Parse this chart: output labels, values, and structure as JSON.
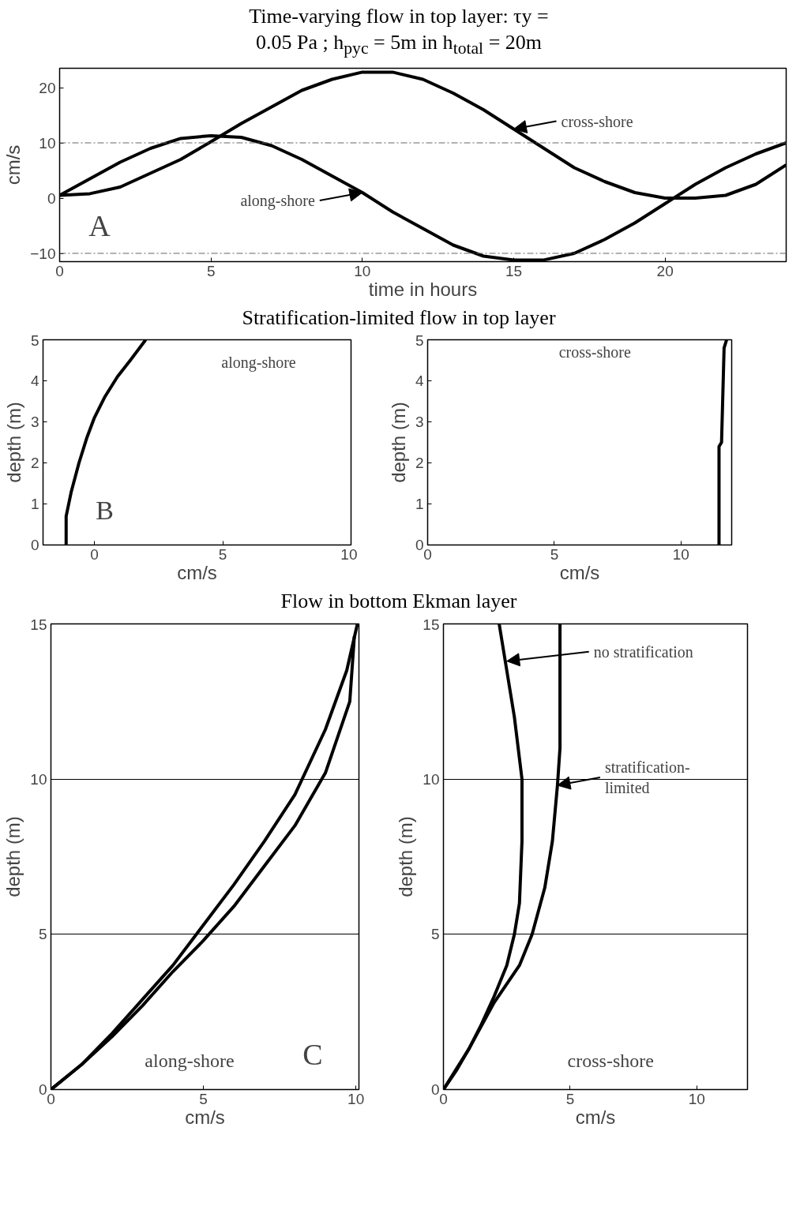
{
  "chart_data": [
    {
      "type": "line",
      "title": "Time-varying flow in top layer:  τy =\n0.05 Pa ;  h$_{pyc}$ = 5m in h$_{total}$ = 20m",
      "xlabel": "time in hours",
      "ylabel": "cm/s",
      "xlim": [
        0,
        24
      ],
      "ylim": [
        -11.5,
        23.5
      ],
      "xticks": [
        0,
        5,
        10,
        15,
        20
      ],
      "yticks": [
        -10,
        0,
        10,
        20
      ],
      "ref_lines": [
        {
          "axis": "y",
          "value": 10,
          "color": "#666666",
          "line_style": "dashed"
        },
        {
          "axis": "y",
          "value": -10,
          "color": "#666666",
          "line_style": "dashed"
        }
      ],
      "line_style": "solid",
      "series": [
        {
          "color": "#000000",
          "x": [
            0,
            1,
            2,
            3,
            4,
            5,
            6,
            7,
            8,
            9,
            10,
            11,
            12,
            13,
            14,
            15,
            16,
            17,
            18,
            19,
            20,
            21,
            22,
            23,
            24
          ],
          "values": [
            0.5,
            3.5,
            6.5,
            9,
            10.8,
            11.3,
            11,
            9.5,
            7,
            4,
            1,
            -2.5,
            -5.5,
            -8.5,
            -10.5,
            -11.2,
            -11.2,
            -10,
            -7.5,
            -4.5,
            -1,
            2.5,
            5.5,
            8,
            10
          ]
        },
        {
          "color": "#000000",
          "x": [
            0,
            1,
            2,
            3,
            4,
            5,
            6,
            7,
            8,
            9,
            10,
            11,
            12,
            13,
            14,
            15,
            16,
            17,
            18,
            19,
            20,
            21,
            22,
            23,
            24
          ],
          "values": [
            0.5,
            0.8,
            2,
            4.5,
            7,
            10.2,
            13.5,
            16.5,
            19.5,
            21.5,
            22.8,
            22.8,
            21.5,
            19,
            16,
            12.5,
            9,
            5.5,
            3,
            1,
            0,
            0,
            0.5,
            2.5,
            6
          ]
        }
      ],
      "annotations": [
        "A",
        {
          "text": "cross-shore",
          "x": 15,
          "y": 12.5
        },
        {
          "text": "along-shore",
          "x": 10,
          "y": 1
        }
      ]
    },
    {
      "type": "line",
      "title": "Stratification-limited flow in top layer",
      "xlabel": "cm/s",
      "ylabel": "depth (m)",
      "xlim": [
        -2,
        10
      ],
      "ylim": [
        0,
        5
      ],
      "xticks": [
        0,
        5,
        10
      ],
      "yticks": [
        0,
        1,
        2,
        3,
        4,
        5
      ],
      "line_style": "solid",
      "series": [
        {
          "color": "#000000",
          "x": [
            -1.1,
            -1.1,
            -0.9,
            -0.6,
            -0.3,
            0,
            0.4,
            0.9,
            1.4,
            2
          ],
          "values": [
            0,
            0.7,
            1.3,
            2,
            2.6,
            3.1,
            3.6,
            4.1,
            4.5,
            5
          ]
        }
      ],
      "annotations": [
        "along-shore",
        "B"
      ]
    },
    {
      "type": "line",
      "xlabel": "cm/s",
      "ylabel": "depth (m)",
      "xlim": [
        0,
        12
      ],
      "ylim": [
        0,
        5
      ],
      "xticks": [
        0,
        5,
        10
      ],
      "yticks": [
        0,
        1,
        2,
        3,
        4,
        5
      ],
      "line_style": "solid",
      "series": [
        {
          "color": "#000000",
          "x": [
            11.5,
            11.5,
            11.6,
            11.7,
            11.8
          ],
          "values": [
            0,
            2.4,
            2.5,
            4.8,
            5
          ]
        }
      ],
      "annotations": [
        "cross-shore"
      ]
    },
    {
      "type": "line",
      "title": "Flow in bottom Ekman layer",
      "xlabel": "cm/s",
      "ylabel": "depth (m)",
      "xlim": [
        0,
        10.1
      ],
      "ylim": [
        0,
        15
      ],
      "xticks": [
        0,
        5,
        10
      ],
      "yticks": [
        0,
        5,
        10,
        15
      ],
      "grid": "y",
      "line_style": "solid",
      "series": [
        {
          "color": "#000000",
          "x": [
            0,
            1,
            2,
            3,
            4,
            5,
            6,
            7,
            8,
            9,
            9.7,
            10.05
          ],
          "values": [
            0,
            0.8,
            1.8,
            2.9,
            4,
            5.3,
            6.6,
            8,
            9.5,
            11.6,
            13.5,
            15
          ]
        },
        {
          "color": "#000000",
          "x": [
            0,
            1,
            2,
            3,
            4,
            5,
            6,
            7,
            8,
            9,
            9.8,
            9.95
          ],
          "values": [
            0,
            0.8,
            1.7,
            2.7,
            3.8,
            4.8,
            5.9,
            7.2,
            8.5,
            10.2,
            12.5,
            14.6
          ]
        }
      ],
      "annotations": [
        "along-shore",
        "C"
      ]
    },
    {
      "type": "line",
      "xlabel": "cm/s",
      "ylabel": "depth (m)",
      "xlim": [
        0,
        12
      ],
      "ylim": [
        0,
        15
      ],
      "xticks": [
        0,
        5,
        10
      ],
      "yticks": [
        0,
        5,
        10,
        15
      ],
      "grid": "y",
      "line_style": "solid",
      "series": [
        {
          "color": "#000000",
          "x": [
            0,
            0.5,
            1,
            1.5,
            2,
            2.5,
            2.8,
            3,
            3.1,
            3.1,
            2.8,
            2.5,
            2.2
          ],
          "values": [
            0,
            0.6,
            1.3,
            2.1,
            3,
            4,
            5,
            6,
            8,
            10,
            12,
            13.5,
            15
          ]
        },
        {
          "color": "#000000",
          "x": [
            0,
            1,
            2,
            3,
            3.5,
            4,
            4.3,
            4.5,
            4.6,
            4.6
          ],
          "values": [
            0,
            1.3,
            2.8,
            4,
            5,
            6.5,
            8,
            9.8,
            11,
            15
          ]
        }
      ],
      "annotations": [
        "cross-shore",
        {
          "text": "no stratification",
          "x": 2.5,
          "y": 13.8
        },
        {
          "text": "stratification-\nlimited",
          "x": 4.5,
          "y": 9.8
        }
      ]
    }
  ]
}
